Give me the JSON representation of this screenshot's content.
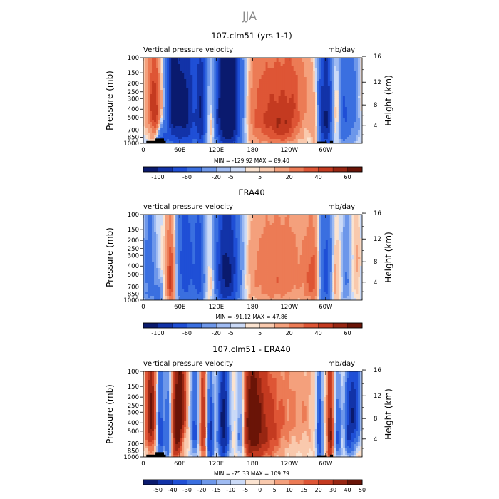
{
  "figure": {
    "title": "JJA"
  },
  "palette": {
    "blue": [
      "#0a1a6e",
      "#1233a8",
      "#1f4fd6",
      "#3a6fe0",
      "#6d97ea",
      "#9fbbf2",
      "#cbdaf7"
    ],
    "neutral": "#fbe3d0",
    "red": [
      "#f9c9ad",
      "#f4a07c",
      "#ec7b55",
      "#de5535",
      "#c43a20",
      "#982612",
      "#6a1407"
    ]
  },
  "chart_data": [
    {
      "type": "heatmap",
      "title": "107.clm51 (yrs 1-1)",
      "left_label": "Vertical pressure velocity",
      "units": "mb/day",
      "ylabel": "Pressure (mb)",
      "ylabel_right": "Height (km)",
      "xticks": [
        "0",
        "60E",
        "120E",
        "180",
        "120W",
        "60W"
      ],
      "xtick_values": [
        0,
        60,
        120,
        180,
        240,
        300
      ],
      "xlim": [
        0,
        360
      ],
      "pressure_ticks": [
        "100",
        "150",
        "200",
        "250",
        "300",
        "400",
        "500",
        "700",
        "850",
        "1000"
      ],
      "pressure_values": [
        100,
        150,
        200,
        250,
        300,
        400,
        500,
        700,
        850,
        1000
      ],
      "height_ticks": [
        "4",
        "8",
        "12",
        "16"
      ],
      "height_values": [
        4,
        8,
        12,
        16
      ],
      "stats": "MIN = -129.92   MAX =  89.40",
      "colorbar_labels": [
        "-100",
        "-60",
        "-20",
        "-5",
        "5",
        "20",
        "40",
        "60"
      ],
      "levels": [
        -100,
        -80,
        -60,
        -40,
        -20,
        -10,
        -5,
        0,
        5,
        10,
        20,
        30,
        40,
        50,
        60,
        70
      ],
      "anomalies": [
        {
          "lon": 20,
          "p": 420,
          "amp": 45,
          "wl": 8,
          "wp": 300
        },
        {
          "lon": 30,
          "p": 900,
          "amp": -45,
          "wl": 6,
          "wp": 220
        },
        {
          "lon": 48,
          "p": 320,
          "amp": -70,
          "wl": 9,
          "wp": 480
        },
        {
          "lon": 70,
          "p": 420,
          "amp": -85,
          "wl": 13,
          "wp": 520
        },
        {
          "lon": 95,
          "p": 450,
          "amp": -65,
          "wl": 6,
          "wp": 520
        },
        {
          "lon": 140,
          "p": 400,
          "amp": -130,
          "wl": 16,
          "wp": 520
        },
        {
          "lon": 112,
          "p": 600,
          "amp": 30,
          "wl": 5,
          "wp": 400
        },
        {
          "lon": 200,
          "p": 450,
          "amp": 38,
          "wl": 32,
          "wp": 420
        },
        {
          "lon": 252,
          "p": 260,
          "amp": 22,
          "wl": 20,
          "wp": 300
        },
        {
          "lon": 232,
          "p": 680,
          "amp": 22,
          "wl": 16,
          "wp": 260
        },
        {
          "lon": 300,
          "p": 480,
          "amp": -85,
          "wl": 9,
          "wp": 520
        },
        {
          "lon": 330,
          "p": 450,
          "amp": -35,
          "wl": 7,
          "wp": 400
        },
        {
          "lon": 345,
          "p": 350,
          "amp": -25,
          "wl": 9,
          "wp": 400
        },
        {
          "lon": 316,
          "p": 500,
          "amp": 28,
          "wl": 5,
          "wp": 300
        },
        {
          "lon": 283,
          "p": 700,
          "amp": 22,
          "wl": 5,
          "wp": 300
        },
        {
          "lon": 8,
          "p": 250,
          "amp": 14,
          "wl": 10,
          "wp": 260
        }
      ],
      "topography": [
        {
          "lon0": 5,
          "lon1": 37,
          "p": 940
        },
        {
          "lon0": 20,
          "lon1": 34,
          "p": 880
        },
        {
          "lon0": 285,
          "lon1": 302,
          "p": 955
        },
        {
          "lon0": 307,
          "lon1": 312,
          "p": 940
        }
      ]
    },
    {
      "type": "heatmap",
      "title": "ERA40",
      "left_label": "vertical pressure velocity",
      "units": "mb/day",
      "ylabel": "Pressure (mb)",
      "ylabel_right": "Height (km)",
      "xticks": [
        "0",
        "60E",
        "120E",
        "180",
        "120W",
        "60W"
      ],
      "xtick_values": [
        0,
        60,
        120,
        180,
        240,
        300
      ],
      "xlim": [
        0,
        360
      ],
      "pressure_ticks": [
        "100",
        "150",
        "200",
        "250",
        "300",
        "400",
        "500",
        "700",
        "850",
        "1000"
      ],
      "pressure_values": [
        100,
        150,
        200,
        250,
        300,
        400,
        500,
        700,
        850,
        1000
      ],
      "height_ticks": [
        "4",
        "8",
        "12",
        "16"
      ],
      "height_values": [
        4,
        8,
        12,
        16
      ],
      "stats": "MIN = -91.12   MAX =  47.86",
      "colorbar_labels": [
        "-100",
        "-60",
        "-20",
        "-5",
        "5",
        "20",
        "40",
        "60"
      ],
      "levels": [
        -100,
        -80,
        -60,
        -40,
        -20,
        -10,
        -5,
        0,
        5,
        10,
        20,
        30,
        40,
        50,
        60,
        70
      ],
      "anomalies": [
        {
          "lon": 10,
          "p": 500,
          "amp": -32,
          "wl": 7,
          "wp": 460
        },
        {
          "lon": 25,
          "p": 880,
          "amp": -28,
          "wl": 5,
          "wp": 220
        },
        {
          "lon": 45,
          "p": 550,
          "amp": 48,
          "wl": 6,
          "wp": 380
        },
        {
          "lon": 70,
          "p": 420,
          "amp": -55,
          "wl": 11,
          "wp": 500
        },
        {
          "lon": 92,
          "p": 450,
          "amp": -45,
          "wl": 6,
          "wp": 500
        },
        {
          "lon": 138,
          "p": 480,
          "amp": -90,
          "wl": 15,
          "wp": 520
        },
        {
          "lon": 112,
          "p": 600,
          "amp": 22,
          "wl": 5,
          "wp": 380
        },
        {
          "lon": 205,
          "p": 500,
          "amp": 26,
          "wl": 30,
          "wp": 460
        },
        {
          "lon": 255,
          "p": 450,
          "amp": 16,
          "wl": 24,
          "wp": 450
        },
        {
          "lon": 280,
          "p": 580,
          "amp": 28,
          "wl": 9,
          "wp": 380
        },
        {
          "lon": 300,
          "p": 520,
          "amp": -55,
          "wl": 8,
          "wp": 520
        },
        {
          "lon": 315,
          "p": 600,
          "amp": 20,
          "wl": 5,
          "wp": 320
        },
        {
          "lon": 335,
          "p": 500,
          "amp": -22,
          "wl": 6,
          "wp": 420
        },
        {
          "lon": 350,
          "p": 400,
          "amp": 12,
          "wl": 8,
          "wp": 360
        }
      ],
      "topography": []
    },
    {
      "type": "heatmap",
      "title": "107.clm51 - ERA40",
      "left_label": "vertical pressure velocity",
      "units": "mb/day",
      "ylabel": "Pressure (mb)",
      "ylabel_right": "Height (km)",
      "xticks": [
        "0",
        "60E",
        "120E",
        "180",
        "120W",
        "60W"
      ],
      "xtick_values": [
        0,
        60,
        120,
        180,
        240,
        300
      ],
      "xlim": [
        0,
        360
      ],
      "pressure_ticks": [
        "100",
        "150",
        "200",
        "250",
        "300",
        "400",
        "500",
        "700",
        "850",
        "1000"
      ],
      "pressure_values": [
        100,
        150,
        200,
        250,
        300,
        400,
        500,
        700,
        850,
        1000
      ],
      "height_ticks": [
        "4",
        "8",
        "12",
        "16"
      ],
      "height_values": [
        4,
        8,
        12,
        16
      ],
      "stats": "MIN = -75.33   MAX = 109.79",
      "colorbar_labels": [
        "-50",
        "-40",
        "-30",
        "-20",
        "-15",
        "-10",
        "-5",
        "0",
        "5",
        "10",
        "15",
        "20",
        "30",
        "40",
        "50"
      ],
      "levels": [
        -60,
        -50,
        -40,
        -30,
        -20,
        -15,
        -10,
        -5,
        0,
        5,
        10,
        15,
        20,
        30,
        40,
        50
      ],
      "anomalies": [
        {
          "lon": 12,
          "p": 330,
          "amp": 45,
          "wl": 6,
          "wp": 300
        },
        {
          "lon": 28,
          "p": 500,
          "amp": -38,
          "wl": 4,
          "wp": 450
        },
        {
          "lon": 40,
          "p": 520,
          "amp": -30,
          "wl": 4,
          "wp": 420
        },
        {
          "lon": 60,
          "p": 230,
          "amp": 45,
          "wl": 7,
          "wp": 260
        },
        {
          "lon": 55,
          "p": 650,
          "amp": 35,
          "wl": 5,
          "wp": 300
        },
        {
          "lon": 85,
          "p": 420,
          "amp": -35,
          "wl": 5,
          "wp": 420
        },
        {
          "lon": 98,
          "p": 450,
          "amp": 30,
          "wl": 5,
          "wp": 400
        },
        {
          "lon": 110,
          "p": 600,
          "amp": -45,
          "wl": 4,
          "wp": 450
        },
        {
          "lon": 132,
          "p": 450,
          "amp": -55,
          "wl": 7,
          "wp": 500
        },
        {
          "lon": 160,
          "p": 450,
          "amp": -35,
          "wl": 5,
          "wp": 420
        },
        {
          "lon": 178,
          "p": 400,
          "amp": 40,
          "wl": 12,
          "wp": 420
        },
        {
          "lon": 200,
          "p": 500,
          "amp": 25,
          "wl": 20,
          "wp": 400
        },
        {
          "lon": 250,
          "p": 300,
          "amp": 10,
          "wl": 25,
          "wp": 250
        },
        {
          "lon": 290,
          "p": 520,
          "amp": -40,
          "wl": 4,
          "wp": 460
        },
        {
          "lon": 308,
          "p": 520,
          "amp": 40,
          "wl": 4,
          "wp": 420
        },
        {
          "lon": 320,
          "p": 550,
          "amp": -30,
          "wl": 4,
          "wp": 420
        },
        {
          "lon": 345,
          "p": 300,
          "amp": -45,
          "wl": 9,
          "wp": 320
        },
        {
          "lon": 338,
          "p": 700,
          "amp": -20,
          "wl": 5,
          "wp": 300
        }
      ],
      "topography": [
        {
          "lon0": 5,
          "lon1": 37,
          "p": 940
        },
        {
          "lon0": 20,
          "lon1": 34,
          "p": 880
        },
        {
          "lon0": 285,
          "lon1": 302,
          "p": 955
        },
        {
          "lon0": 307,
          "lon1": 312,
          "p": 940
        }
      ]
    }
  ]
}
